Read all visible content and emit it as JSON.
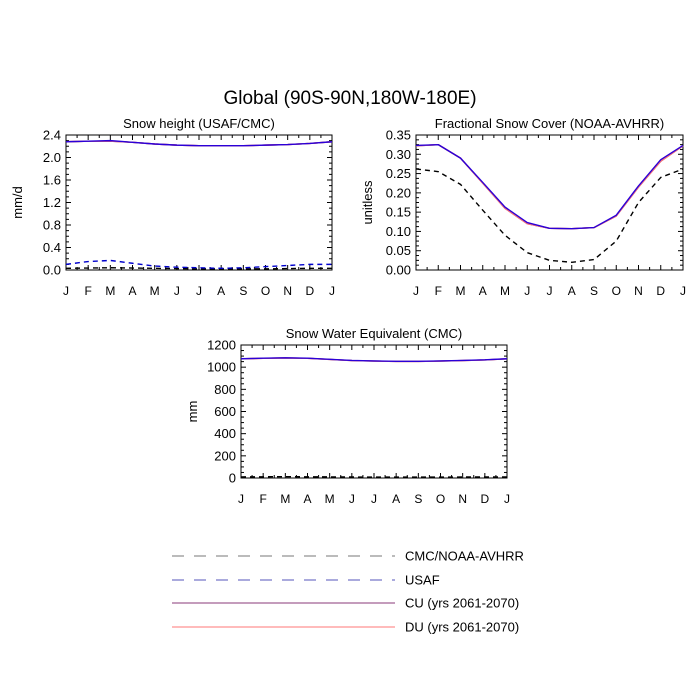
{
  "figure": {
    "title": "Global (90S-90N,180W-180E)"
  },
  "months": [
    "J",
    "F",
    "M",
    "A",
    "M",
    "J",
    "J",
    "A",
    "S",
    "O",
    "N",
    "D",
    "J"
  ],
  "chart_data": [
    {
      "type": "line",
      "title": "Snow height (USAF/CMC)",
      "ylabel": "mm/d",
      "ylim": [
        0,
        2.4
      ],
      "yticks": [
        "0.0",
        "0.4",
        "0.8",
        "1.2",
        "1.6",
        "2.0",
        "2.4"
      ],
      "x": [
        "J",
        "F",
        "M",
        "A",
        "M",
        "J",
        "J",
        "A",
        "S",
        "O",
        "N",
        "D",
        "J"
      ],
      "series": [
        {
          "name": "CMC/NOAA-AVHRR",
          "color": "#000000",
          "dash": "dashed",
          "values": [
            0.03,
            0.035,
            0.04,
            0.035,
            0.03,
            0.025,
            0.02,
            0.02,
            0.02,
            0.02,
            0.025,
            0.03,
            0.03
          ]
        },
        {
          "name": "USAF",
          "color": "#0000cc",
          "dash": "dashed",
          "values": [
            0.1,
            0.15,
            0.17,
            0.12,
            0.07,
            0.05,
            0.04,
            0.03,
            0.04,
            0.06,
            0.08,
            0.1,
            0.1
          ]
        },
        {
          "name": "CU (yrs 2061-2070)",
          "color": "#7a1a60",
          "dash": "solid",
          "values": [
            2.28,
            2.29,
            2.29,
            2.27,
            2.24,
            2.22,
            2.21,
            2.21,
            2.21,
            2.22,
            2.23,
            2.25,
            2.28
          ]
        },
        {
          "name": "DU (yrs 2061-2070)",
          "color": "#ff7777",
          "dash": "solid",
          "values": [
            2.28,
            2.29,
            2.29,
            2.27,
            2.24,
            2.22,
            2.21,
            2.21,
            2.21,
            2.22,
            2.23,
            2.25,
            2.28
          ]
        },
        {
          "name": "",
          "color": "#2a00d8",
          "dash": "solid",
          "values": [
            2.28,
            2.29,
            2.3,
            2.27,
            2.24,
            2.22,
            2.21,
            2.21,
            2.21,
            2.22,
            2.23,
            2.25,
            2.28
          ]
        }
      ]
    },
    {
      "type": "line",
      "title": "Fractional Snow Cover (NOAA-AVHRR)",
      "ylabel": "unitless",
      "ylim": [
        0,
        0.35
      ],
      "yticks": [
        "0.00",
        "0.05",
        "0.10",
        "0.15",
        "0.20",
        "0.25",
        "0.30",
        "0.35"
      ],
      "x": [
        "J",
        "F",
        "M",
        "A",
        "M",
        "J",
        "J",
        "A",
        "S",
        "O",
        "N",
        "D",
        "J"
      ],
      "series": [
        {
          "name": "CMC/NOAA-AVHRR",
          "color": "#000000",
          "dash": "dashed",
          "values": [
            0.262,
            0.255,
            0.222,
            0.155,
            0.09,
            0.045,
            0.025,
            0.02,
            0.027,
            0.075,
            0.175,
            0.24,
            0.262
          ]
        },
        {
          "name": "CU (yrs 2061-2070)",
          "color": "#7a1a60",
          "dash": "solid",
          "values": [
            0.322,
            0.325,
            0.29,
            0.225,
            0.16,
            0.12,
            0.108,
            0.107,
            0.11,
            0.14,
            0.215,
            0.282,
            0.322
          ]
        },
        {
          "name": "DU (yrs 2061-2070)",
          "color": "#ff7777",
          "dash": "solid",
          "values": [
            0.322,
            0.325,
            0.29,
            0.225,
            0.16,
            0.12,
            0.108,
            0.107,
            0.11,
            0.14,
            0.215,
            0.282,
            0.322
          ]
        },
        {
          "name": "",
          "color": "#2a00d8",
          "dash": "solid",
          "values": [
            0.323,
            0.325,
            0.29,
            0.227,
            0.163,
            0.123,
            0.108,
            0.107,
            0.11,
            0.142,
            0.218,
            0.286,
            0.323
          ]
        }
      ]
    },
    {
      "type": "line",
      "title": "Snow Water Equivalent (CMC)",
      "ylabel": "mm",
      "ylim": [
        0,
        1200
      ],
      "yticks": [
        "0",
        "200",
        "400",
        "600",
        "800",
        "1000",
        "1200"
      ],
      "x": [
        "J",
        "F",
        "M",
        "A",
        "M",
        "J",
        "J",
        "A",
        "S",
        "O",
        "N",
        "D",
        "J"
      ],
      "series": [
        {
          "name": "CMC/NOAA-AVHRR",
          "color": "#000000",
          "dash": "dashed",
          "values": [
            10,
            11,
            12,
            11,
            10,
            9,
            8,
            8,
            8,
            8,
            9,
            10,
            10
          ]
        },
        {
          "name": "CU (yrs 2061-2070)",
          "color": "#7a1a60",
          "dash": "solid",
          "values": [
            1075,
            1080,
            1083,
            1080,
            1070,
            1060,
            1055,
            1052,
            1052,
            1055,
            1060,
            1065,
            1075
          ]
        },
        {
          "name": "DU (yrs 2061-2070)",
          "color": "#ff7777",
          "dash": "solid",
          "values": [
            1075,
            1080,
            1083,
            1080,
            1070,
            1060,
            1055,
            1052,
            1052,
            1055,
            1060,
            1065,
            1075
          ]
        },
        {
          "name": "",
          "color": "#2a00d8",
          "dash": "solid",
          "values": [
            1076,
            1081,
            1084,
            1081,
            1071,
            1061,
            1056,
            1053,
            1053,
            1056,
            1061,
            1066,
            1076
          ]
        }
      ]
    }
  ],
  "legend": [
    {
      "label": "CMC/NOAA-AVHRR",
      "color": "#777777",
      "dash": "dashed"
    },
    {
      "label": "USAF",
      "color": "#5555bb",
      "dash": "dashed"
    },
    {
      "label": "CU (yrs 2061-2070)",
      "color": "#8a3a78",
      "dash": "solid"
    },
    {
      "label": "DU (yrs 2061-2070)",
      "color": "#ff7777",
      "dash": "solid"
    }
  ]
}
